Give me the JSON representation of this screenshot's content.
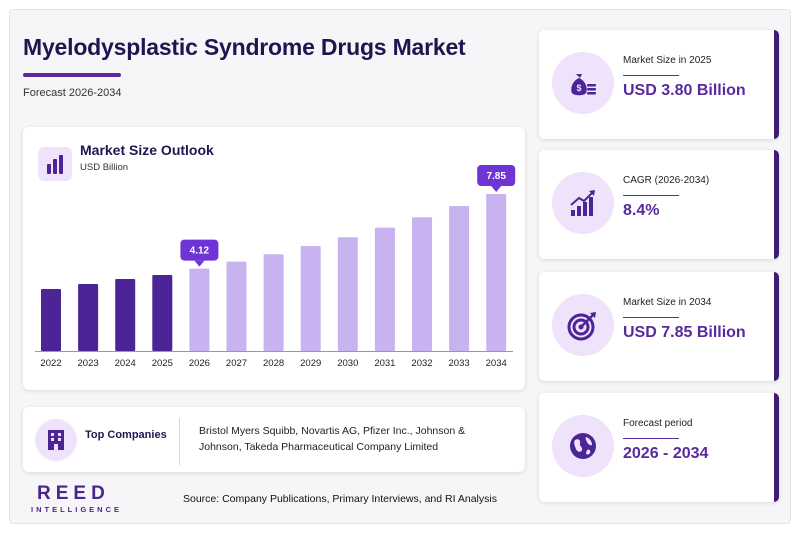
{
  "header": {
    "title": "Myelodysplastic Syndrome Drugs Market",
    "subtitle": "Forecast 2026-2034"
  },
  "chart_panel": {
    "title": "Market Size Outlook",
    "unit": "USD Billion"
  },
  "chart_data": {
    "type": "bar",
    "categories": [
      "2022",
      "2023",
      "2024",
      "2025",
      "2026",
      "2027",
      "2028",
      "2029",
      "2030",
      "2031",
      "2032",
      "2033",
      "2034"
    ],
    "values": [
      3.1,
      3.35,
      3.6,
      3.8,
      4.12,
      4.47,
      4.84,
      5.25,
      5.69,
      6.17,
      6.69,
      7.25,
      7.85
    ],
    "historical_until": "2025",
    "callouts": [
      {
        "category": "2026",
        "label": "4.12"
      },
      {
        "category": "2034",
        "label": "7.85"
      }
    ],
    "colors": {
      "historical": "#4b2596",
      "forecast": "#c8b3f0",
      "callout": "#6f34d6"
    },
    "ylim": [
      0,
      8.5
    ],
    "grid": false,
    "xlabel": "",
    "ylabel": ""
  },
  "companies": {
    "label": "Top Companies",
    "text": "Bristol Myers Squibb, Novartis AG, Pfizer Inc., Johnson & Johnson, Takeda Pharmaceutical Company Limited"
  },
  "footer": {
    "logo_main": "REED",
    "logo_sub": "INTELLIGENCE",
    "source": "Source: Company Publications, Primary Interviews, and RI Analysis"
  },
  "kpis": [
    {
      "label": "Market Size in 2025",
      "value": "USD 3.80 Billion",
      "icon": "money-bag-icon"
    },
    {
      "label": "CAGR (2026-2034)",
      "value": "8.4%",
      "icon": "growth-chart-icon"
    },
    {
      "label": "Market Size in 2034",
      "value": "USD 7.85 Billion",
      "icon": "target-icon"
    },
    {
      "label": "Forecast period",
      "value": "2026 - 2034",
      "icon": "globe-icon"
    }
  ],
  "theme": {
    "accent": "#5a2a9c",
    "dark": "#1f1650",
    "soft": "#efe3fb"
  }
}
